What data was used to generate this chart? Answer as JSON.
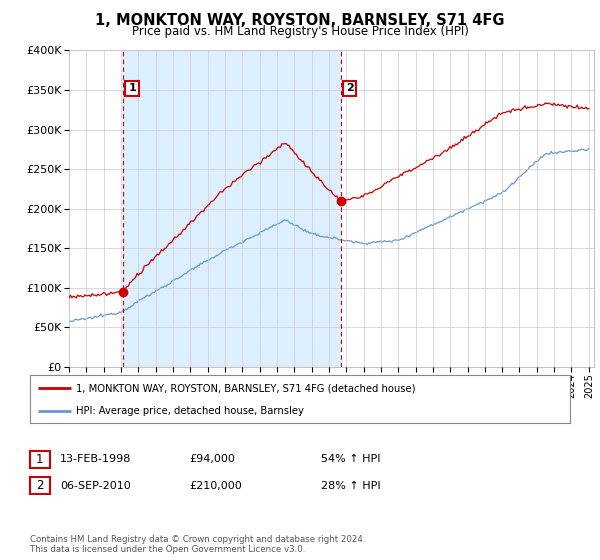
{
  "title": "1, MONKTON WAY, ROYSTON, BARNSLEY, S71 4FG",
  "subtitle": "Price paid vs. HM Land Registry's House Price Index (HPI)",
  "legend_line1": "1, MONKTON WAY, ROYSTON, BARNSLEY, S71 4FG (detached house)",
  "legend_line2": "HPI: Average price, detached house, Barnsley",
  "table_rows": [
    {
      "num": "1",
      "date": "13-FEB-1998",
      "price": "£94,000",
      "hpi": "54% ↑ HPI"
    },
    {
      "num": "2",
      "date": "06-SEP-2010",
      "price": "£210,000",
      "hpi": "28% ↑ HPI"
    }
  ],
  "footnote1": "Contains HM Land Registry data © Crown copyright and database right 2024.",
  "footnote2": "This data is licensed under the Open Government Licence v3.0.",
  "red_color": "#cc0000",
  "blue_color": "#6699cc",
  "shade_color": "#ddeeff",
  "background_color": "#ffffff",
  "grid_color": "#cccccc",
  "ylim": [
    0,
    400000
  ],
  "yticks": [
    0,
    50000,
    100000,
    150000,
    200000,
    250000,
    300000,
    350000,
    400000
  ],
  "start_year": 1995,
  "end_year": 2025,
  "sale1_year": 1998.12,
  "sale1_price": 94000,
  "sale2_year": 2010.68,
  "sale2_price": 210000
}
